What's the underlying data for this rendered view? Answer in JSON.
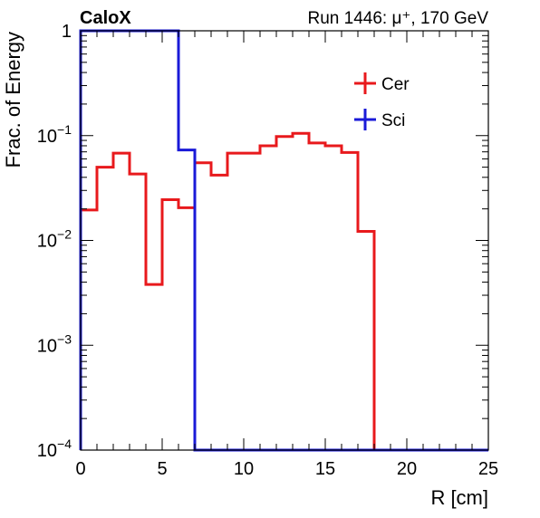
{
  "header": {
    "experiment": "CaloX",
    "run_info": "Run 1446:   μ⁺, 170 GeV"
  },
  "chart_data": {
    "type": "histogram-step",
    "xlabel": "R [cm]",
    "ylabel": "Frac. of Energy",
    "xlim": [
      0,
      25
    ],
    "ylim": [
      0.0001,
      1
    ],
    "yscale": "log",
    "grid": false,
    "legend": "top-right",
    "x_ticks": [
      {
        "v": 0,
        "label": "0"
      },
      {
        "v": 5,
        "label": "5"
      },
      {
        "v": 10,
        "label": "10"
      },
      {
        "v": 15,
        "label": "15"
      },
      {
        "v": 20,
        "label": "20"
      },
      {
        "v": 25,
        "label": "25"
      }
    ],
    "y_ticks": [
      {
        "v": 1,
        "base": "1",
        "exp": ""
      },
      {
        "v": 0.1,
        "base": "10",
        "exp": "−1"
      },
      {
        "v": 0.01,
        "base": "10",
        "exp": "−2"
      },
      {
        "v": 0.001,
        "base": "10",
        "exp": "−3"
      },
      {
        "v": 0.0001,
        "base": "10",
        "exp": "−4"
      }
    ],
    "bin_edges": [
      0,
      1,
      2,
      3,
      4,
      5,
      6,
      7,
      8,
      9,
      10,
      11,
      12,
      13,
      14,
      15,
      16,
      17,
      18,
      19,
      20,
      21,
      22,
      23,
      24,
      25
    ],
    "series": [
      {
        "name": "Cer",
        "color": "#e8191c",
        "values": [
          0.0195,
          0.05,
          0.068,
          0.043,
          0.0038,
          0.0245,
          0.0205,
          0.055,
          0.042,
          0.068,
          0.068,
          0.08,
          0.098,
          0.105,
          0.085,
          0.08,
          0.069,
          0.0122,
          0,
          0,
          0,
          0,
          0,
          0,
          0
        ]
      },
      {
        "name": "Sci",
        "color": "#1a1ad8",
        "values": [
          1,
          1,
          1,
          1,
          1,
          1,
          0.073,
          0,
          0,
          0,
          0,
          0,
          0,
          0,
          0,
          0,
          0,
          0,
          0,
          0,
          0,
          0,
          0,
          0,
          0
        ]
      }
    ]
  }
}
